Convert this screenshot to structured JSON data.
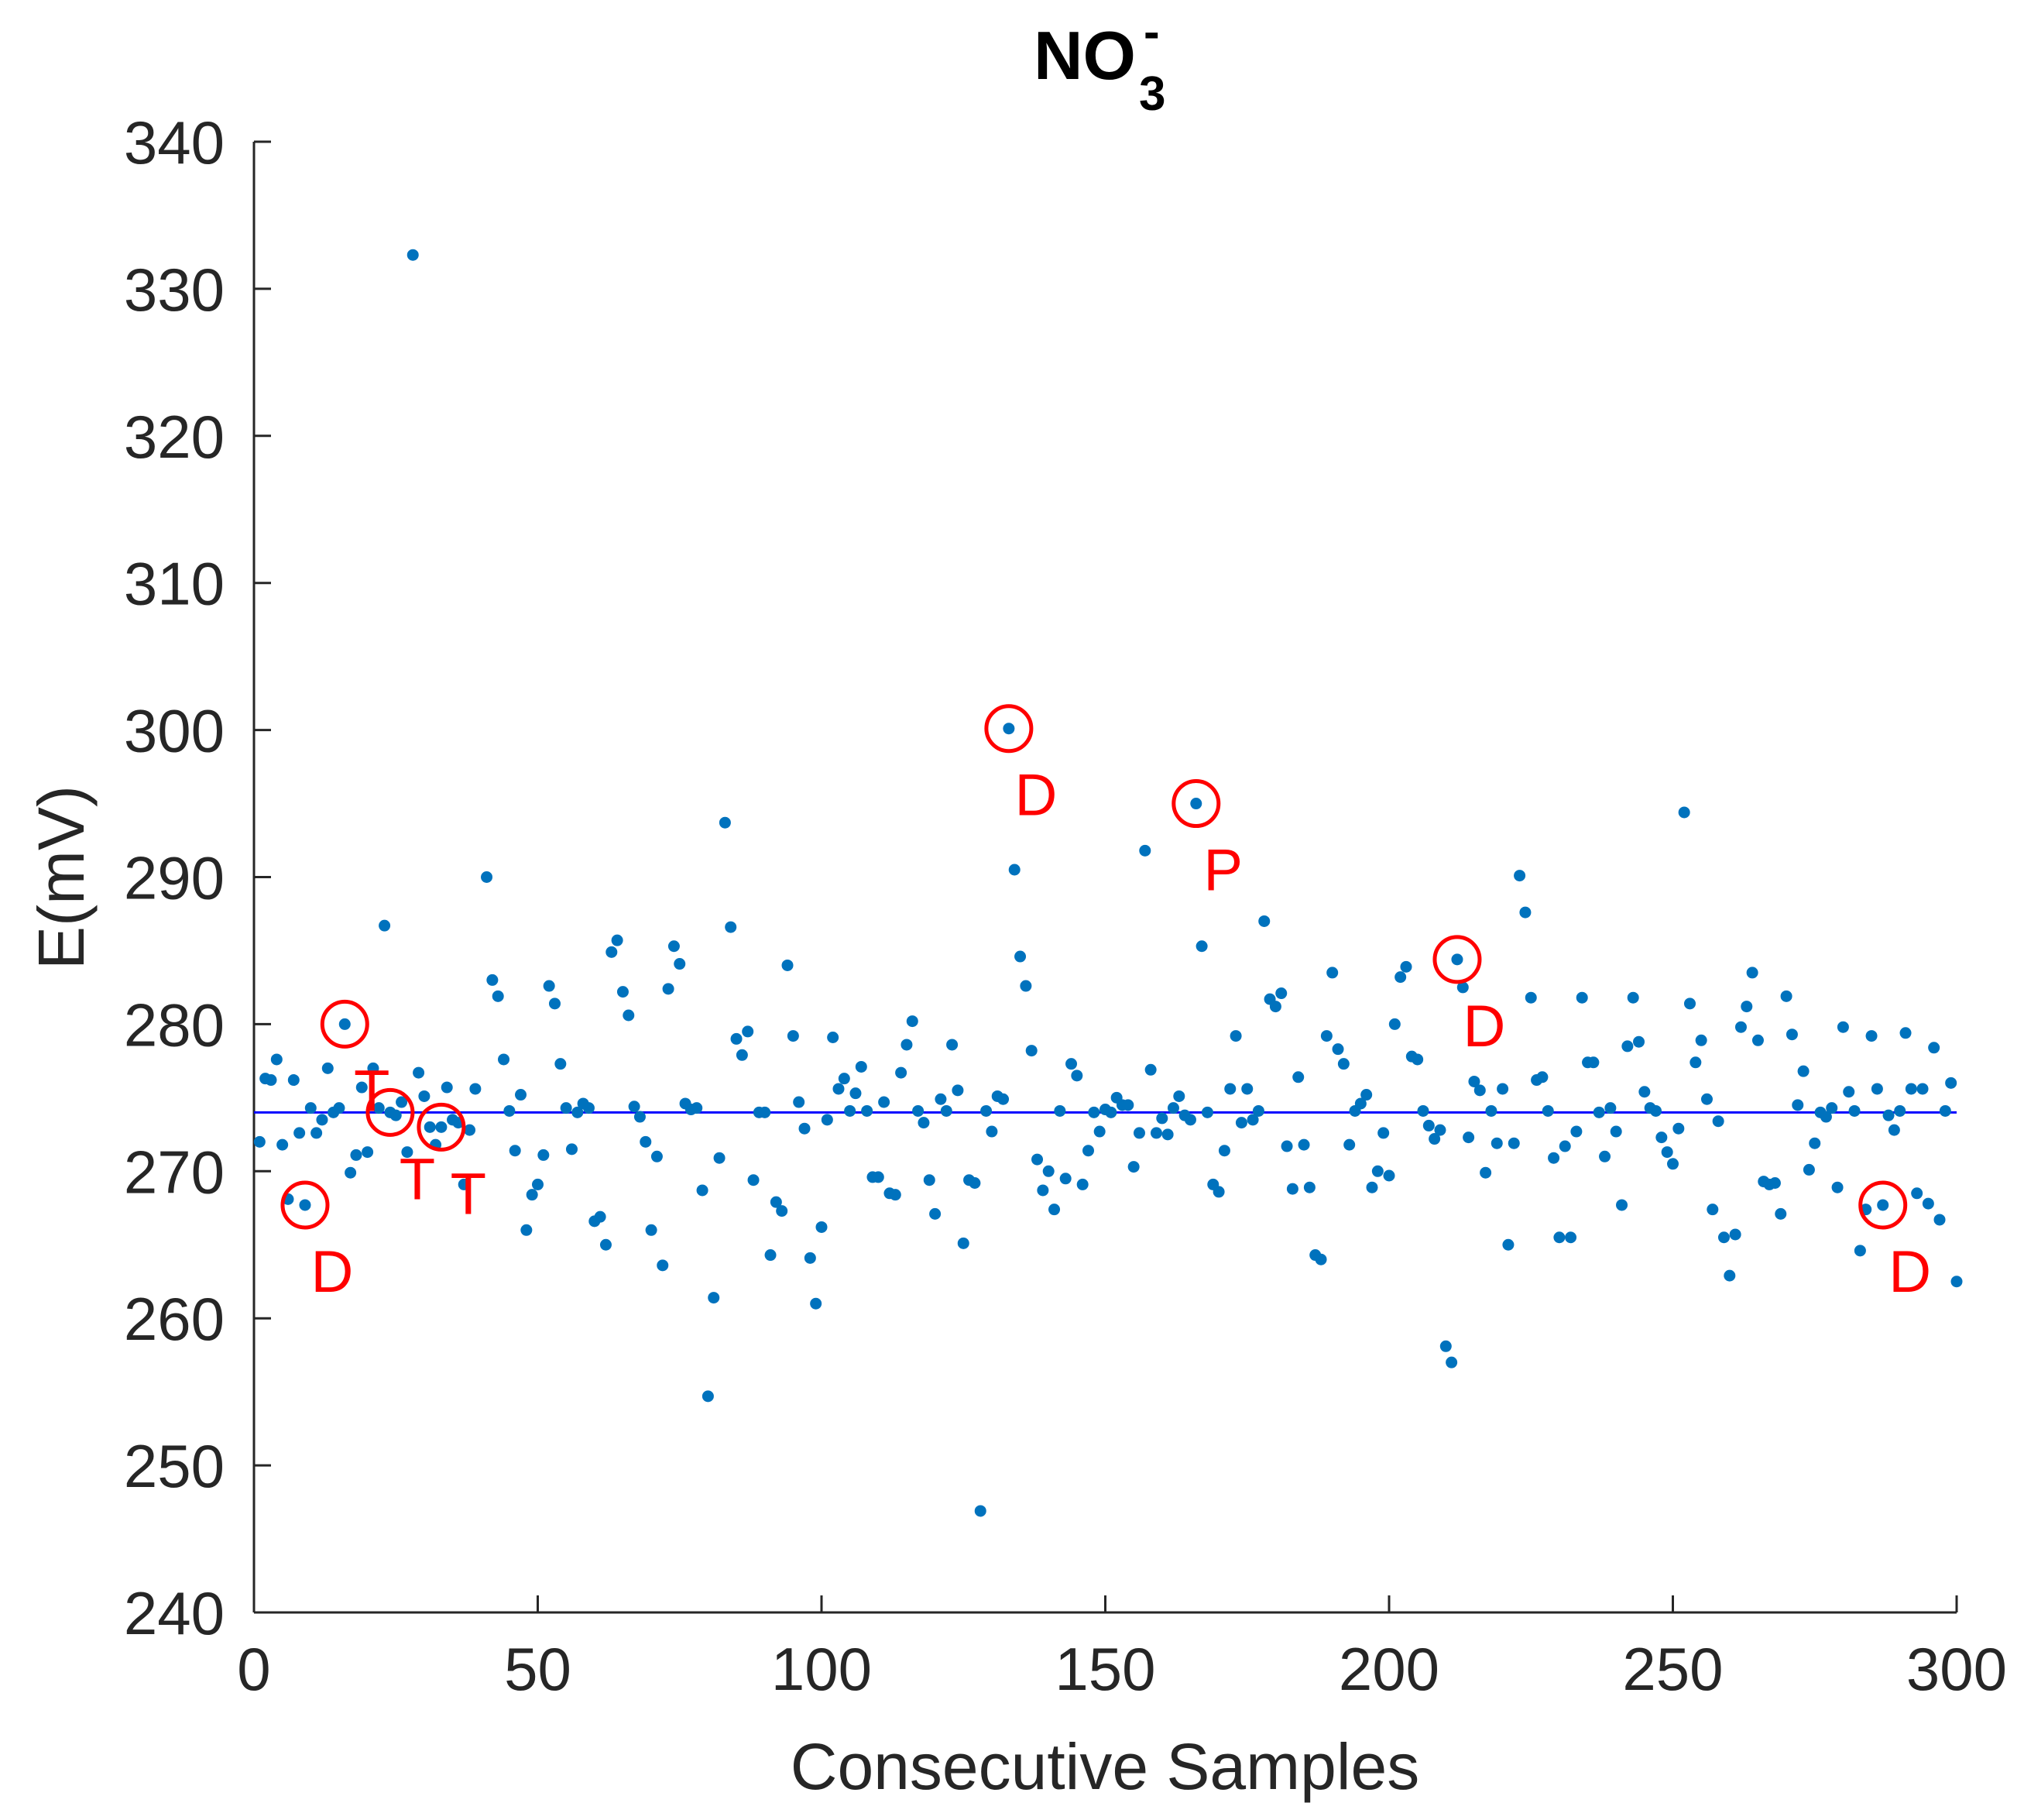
{
  "chart_data": {
    "type": "scatter",
    "title": "NO",
    "title_subscript": "3",
    "title_superscript": "-",
    "xlabel": "Consecutive Samples",
    "ylabel": "E(mV)",
    "xlim": [
      0,
      300
    ],
    "ylim": [
      240,
      340
    ],
    "xticks": [
      0,
      50,
      100,
      150,
      200,
      250,
      300
    ],
    "yticks": [
      240,
      250,
      260,
      270,
      280,
      290,
      300,
      310,
      320,
      330,
      340
    ],
    "color": "#0072bd",
    "hline": 274,
    "hline_color": "#0000ff",
    "annotation_color": "#ff0000",
    "x": [
      1,
      2,
      3,
      4,
      5,
      6,
      7,
      8,
      9,
      10,
      11,
      12,
      13,
      14,
      15,
      16,
      17,
      18,
      19,
      20,
      21,
      22,
      23,
      24,
      25,
      26,
      27,
      28,
      29,
      30,
      31,
      32,
      33,
      34,
      35,
      36,
      37,
      38,
      39,
      41,
      42,
      43,
      44,
      45,
      46,
      47,
      48,
      49,
      50,
      51,
      52,
      53,
      54,
      55,
      56,
      57,
      58,
      59,
      60,
      61,
      62,
      63,
      64,
      65,
      66,
      67,
      68,
      69,
      70,
      71,
      72,
      73,
      74,
      75,
      76,
      77,
      78,
      79,
      80,
      81,
      82,
      83,
      84,
      85,
      86,
      87,
      88,
      89,
      90,
      91,
      92,
      93,
      94,
      95,
      96,
      97,
      98,
      99,
      100,
      101,
      102,
      103,
      104,
      105,
      106,
      107,
      108,
      109,
      110,
      111,
      112,
      113,
      114,
      115,
      116,
      117,
      118,
      119,
      120,
      121,
      122,
      123,
      124,
      125,
      126,
      127,
      128,
      129,
      130,
      131,
      132,
      133,
      134,
      135,
      136,
      137,
      138,
      139,
      140,
      141,
      142,
      143,
      144,
      145,
      146,
      147,
      148,
      149,
      150,
      151,
      152,
      153,
      154,
      155,
      156,
      157,
      158,
      159,
      160,
      161,
      162,
      163,
      164,
      165,
      166,
      167,
      168,
      169,
      170,
      171,
      172,
      173,
      174,
      175,
      176,
      177,
      178,
      179,
      180,
      181,
      182,
      183,
      184,
      185,
      186,
      187,
      188,
      189,
      190,
      191,
      192,
      193,
      194,
      195,
      196,
      197,
      198,
      199,
      200,
      201,
      202,
      203,
      204,
      205,
      206,
      207,
      208,
      209,
      210,
      211,
      212,
      213,
      214,
      215,
      216,
      217,
      218,
      219,
      220,
      221,
      222,
      223,
      224,
      225,
      226,
      227,
      228,
      229,
      230,
      231,
      232,
      233,
      234,
      235,
      236,
      237,
      238,
      239,
      240,
      241,
      242,
      243,
      244,
      245,
      246,
      247,
      248,
      249,
      250,
      251,
      252,
      253,
      254,
      255,
      256,
      257,
      258,
      259,
      260,
      261,
      262,
      263,
      264,
      265,
      266,
      267,
      268,
      269,
      270,
      271,
      272,
      273,
      274,
      275,
      276,
      277,
      278,
      279,
      280,
      281,
      282,
      283,
      284,
      285,
      286,
      287,
      288,
      289,
      290,
      291,
      292,
      293,
      294,
      295,
      296,
      297,
      298,
      299,
      300
    ],
    "values": [
      272.0,
      276.3,
      276.2,
      277.6,
      271.8,
      268.1,
      276.2,
      272.6,
      267.7,
      274.3,
      272.6,
      273.5,
      277.0,
      274.0,
      274.3,
      280.0,
      269.9,
      271.1,
      275.7,
      271.3,
      277.0,
      274.3,
      286.7,
      274.0,
      273.8,
      274.7,
      271.3,
      332.3,
      276.7,
      275.1,
      273.0,
      271.8,
      273.0,
      275.7,
      273.5,
      273.3,
      269.1,
      272.8,
      275.6,
      290.0,
      283.0,
      281.9,
      277.6,
      274.1,
      271.4,
      275.2,
      266.0,
      268.4,
      269.1,
      271.1,
      282.6,
      281.4,
      277.3,
      274.3,
      271.5,
      274.0,
      274.6,
      274.3,
      266.6,
      266.9,
      265.0,
      284.9,
      285.7,
      282.2,
      280.6,
      274.4,
      273.7,
      272.0,
      266.0,
      271.0,
      263.6,
      282.4,
      285.3,
      284.1,
      274.6,
      274.2,
      274.3,
      268.7,
      254.7,
      261.4,
      270.9,
      293.7,
      286.6,
      279.0,
      277.9,
      279.5,
      269.4,
      274.0,
      274.0,
      264.3,
      267.9,
      267.3,
      284.0,
      279.2,
      274.7,
      272.9,
      264.1,
      261.0,
      266.2,
      273.5,
      279.1,
      275.6,
      276.3,
      274.1,
      275.3,
      277.1,
      274.1,
      269.6,
      269.6,
      274.7,
      268.5,
      268.4,
      276.7,
      278.6,
      280.2,
      274.1,
      273.3,
      269.4,
      267.1,
      274.9,
      274.1,
      278.6,
      275.5,
      265.1,
      269.4,
      269.2,
      246.9,
      274.1,
      272.7,
      275.1,
      274.9,
      300.1,
      290.5,
      284.6,
      282.6,
      278.2,
      270.8,
      268.7,
      270.0,
      267.4,
      274.1,
      269.5,
      277.3,
      276.5,
      269.1,
      271.4,
      274.0,
      272.7,
      274.2,
      274.0,
      275.0,
      274.5,
      274.5,
      270.3,
      272.6,
      291.8,
      276.9,
      272.6,
      273.6,
      272.5,
      274.3,
      275.1,
      273.8,
      273.5,
      295.0,
      285.3,
      274.0,
      269.1,
      268.6,
      271.4,
      275.6,
      279.2,
      273.3,
      275.6,
      273.5,
      274.1,
      287.0,
      281.7,
      281.2,
      282.1,
      271.7,
      268.8,
      276.4,
      271.8,
      268.9,
      264.3,
      264.0,
      279.2,
      283.5,
      278.3,
      277.3,
      271.8,
      274.1,
      274.6,
      275.2,
      268.9,
      270.0,
      272.6,
      269.7,
      280.0,
      283.2,
      283.9,
      277.8,
      277.6,
      274.1,
      273.1,
      272.2,
      272.8,
      258.1,
      257.0,
      284.4,
      282.5,
      272.3,
      276.1,
      275.5,
      269.9,
      274.1,
      271.9,
      275.6,
      265.0,
      271.9,
      290.1,
      287.6,
      281.8,
      276.2,
      276.4,
      274.1,
      270.9,
      265.5,
      271.7,
      265.5,
      272.7,
      281.8,
      277.4,
      277.4,
      274.0,
      271.0,
      274.3,
      272.7,
      267.7,
      278.5,
      281.8,
      278.8,
      275.4,
      274.3,
      274.1,
      272.3,
      271.3,
      270.5,
      272.9,
      294.4,
      281.4,
      277.4,
      278.9,
      274.9,
      267.4,
      273.4,
      265.5,
      262.9,
      265.7,
      279.8,
      281.2,
      283.5,
      278.9,
      269.3,
      269.1,
      269.2,
      267.1,
      281.9,
      279.3,
      274.5,
      276.8,
      270.1,
      271.9,
      274.0,
      273.7,
      274.3,
      268.9,
      279.8,
      275.4,
      274.1,
      264.6,
      267.4,
      279.2,
      275.6,
      267.7,
      273.8,
      272.8,
      274.1,
      279.4,
      275.6,
      268.5,
      275.6,
      267.8,
      278.4,
      266.7,
      274.1,
      276.0,
      262.5
    ],
    "annotations": [
      {
        "text": "D",
        "x": 9,
        "y": 267.7
      },
      {
        "text": "T",
        "x": 16,
        "y": 280.0
      },
      {
        "text": "T",
        "x": 24,
        "y": 274.0
      },
      {
        "text": "T",
        "x": 33,
        "y": 273.0
      },
      {
        "text": "D",
        "x": 133,
        "y": 300.1
      },
      {
        "text": "P",
        "x": 166,
        "y": 295.0
      },
      {
        "text": "D",
        "x": 212,
        "y": 284.4
      },
      {
        "text": "D",
        "x": 287,
        "y": 267.7
      }
    ]
  }
}
